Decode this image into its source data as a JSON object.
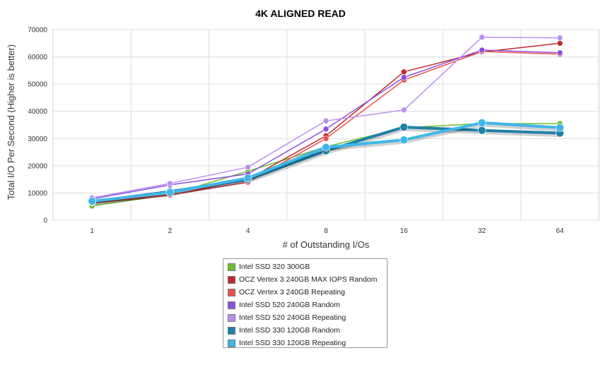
{
  "chart_data": {
    "type": "line",
    "title": "4K ALIGNED READ",
    "xlabel": "# of Outstanding I/Os",
    "ylabel": "Total I/O Per Second (Higher is better)",
    "categories": [
      "1",
      "2",
      "4",
      "8",
      "16",
      "32",
      "64"
    ],
    "yticks": [
      "0",
      "10000",
      "20000",
      "30000",
      "40000",
      "50000",
      "60000",
      "70000"
    ],
    "ylim": [
      0,
      70000
    ],
    "grid": true,
    "legend_position": "bottom",
    "series": [
      {
        "name": "Intel SSD 320 300GB",
        "color": "#6cbf2a",
        "width": 1.5,
        "values": [
          5200,
          9500,
          18000,
          27000,
          34000,
          35500,
          35500
        ]
      },
      {
        "name": "OCZ Vertex 3 240GB MAX IOPS Random",
        "color": "#c0282a",
        "width": 1.5,
        "values": [
          6300,
          9200,
          15000,
          31000,
          54500,
          61800,
          65000
        ]
      },
      {
        "name": "OCZ Vertex 3 240GB Repeating",
        "color": "#ee4e4e",
        "width": 1.5,
        "values": [
          6800,
          9300,
          14000,
          30000,
          51500,
          62000,
          61000
        ]
      },
      {
        "name": "Intel SSD 520 240GB Random",
        "color": "#8d4fde",
        "width": 1.5,
        "values": [
          7800,
          13000,
          17000,
          33500,
          52500,
          62500,
          61500
        ]
      },
      {
        "name": "Intel SSD 520 240GB Repeating",
        "color": "#bb8fef",
        "width": 1.5,
        "values": [
          8200,
          13500,
          19500,
          36500,
          40500,
          67200,
          67000
        ]
      },
      {
        "name": "Intel SSD 330 120GB Random",
        "color": "#1f80a8",
        "width": 4,
        "values": [
          6800,
          10500,
          15000,
          25500,
          34200,
          33000,
          32000
        ]
      },
      {
        "name": "Intel SSD 330 120GB Repeating",
        "color": "#3fb6e8",
        "width": 4,
        "values": [
          7000,
          10200,
          15500,
          26800,
          29500,
          35800,
          34000
        ]
      }
    ]
  }
}
